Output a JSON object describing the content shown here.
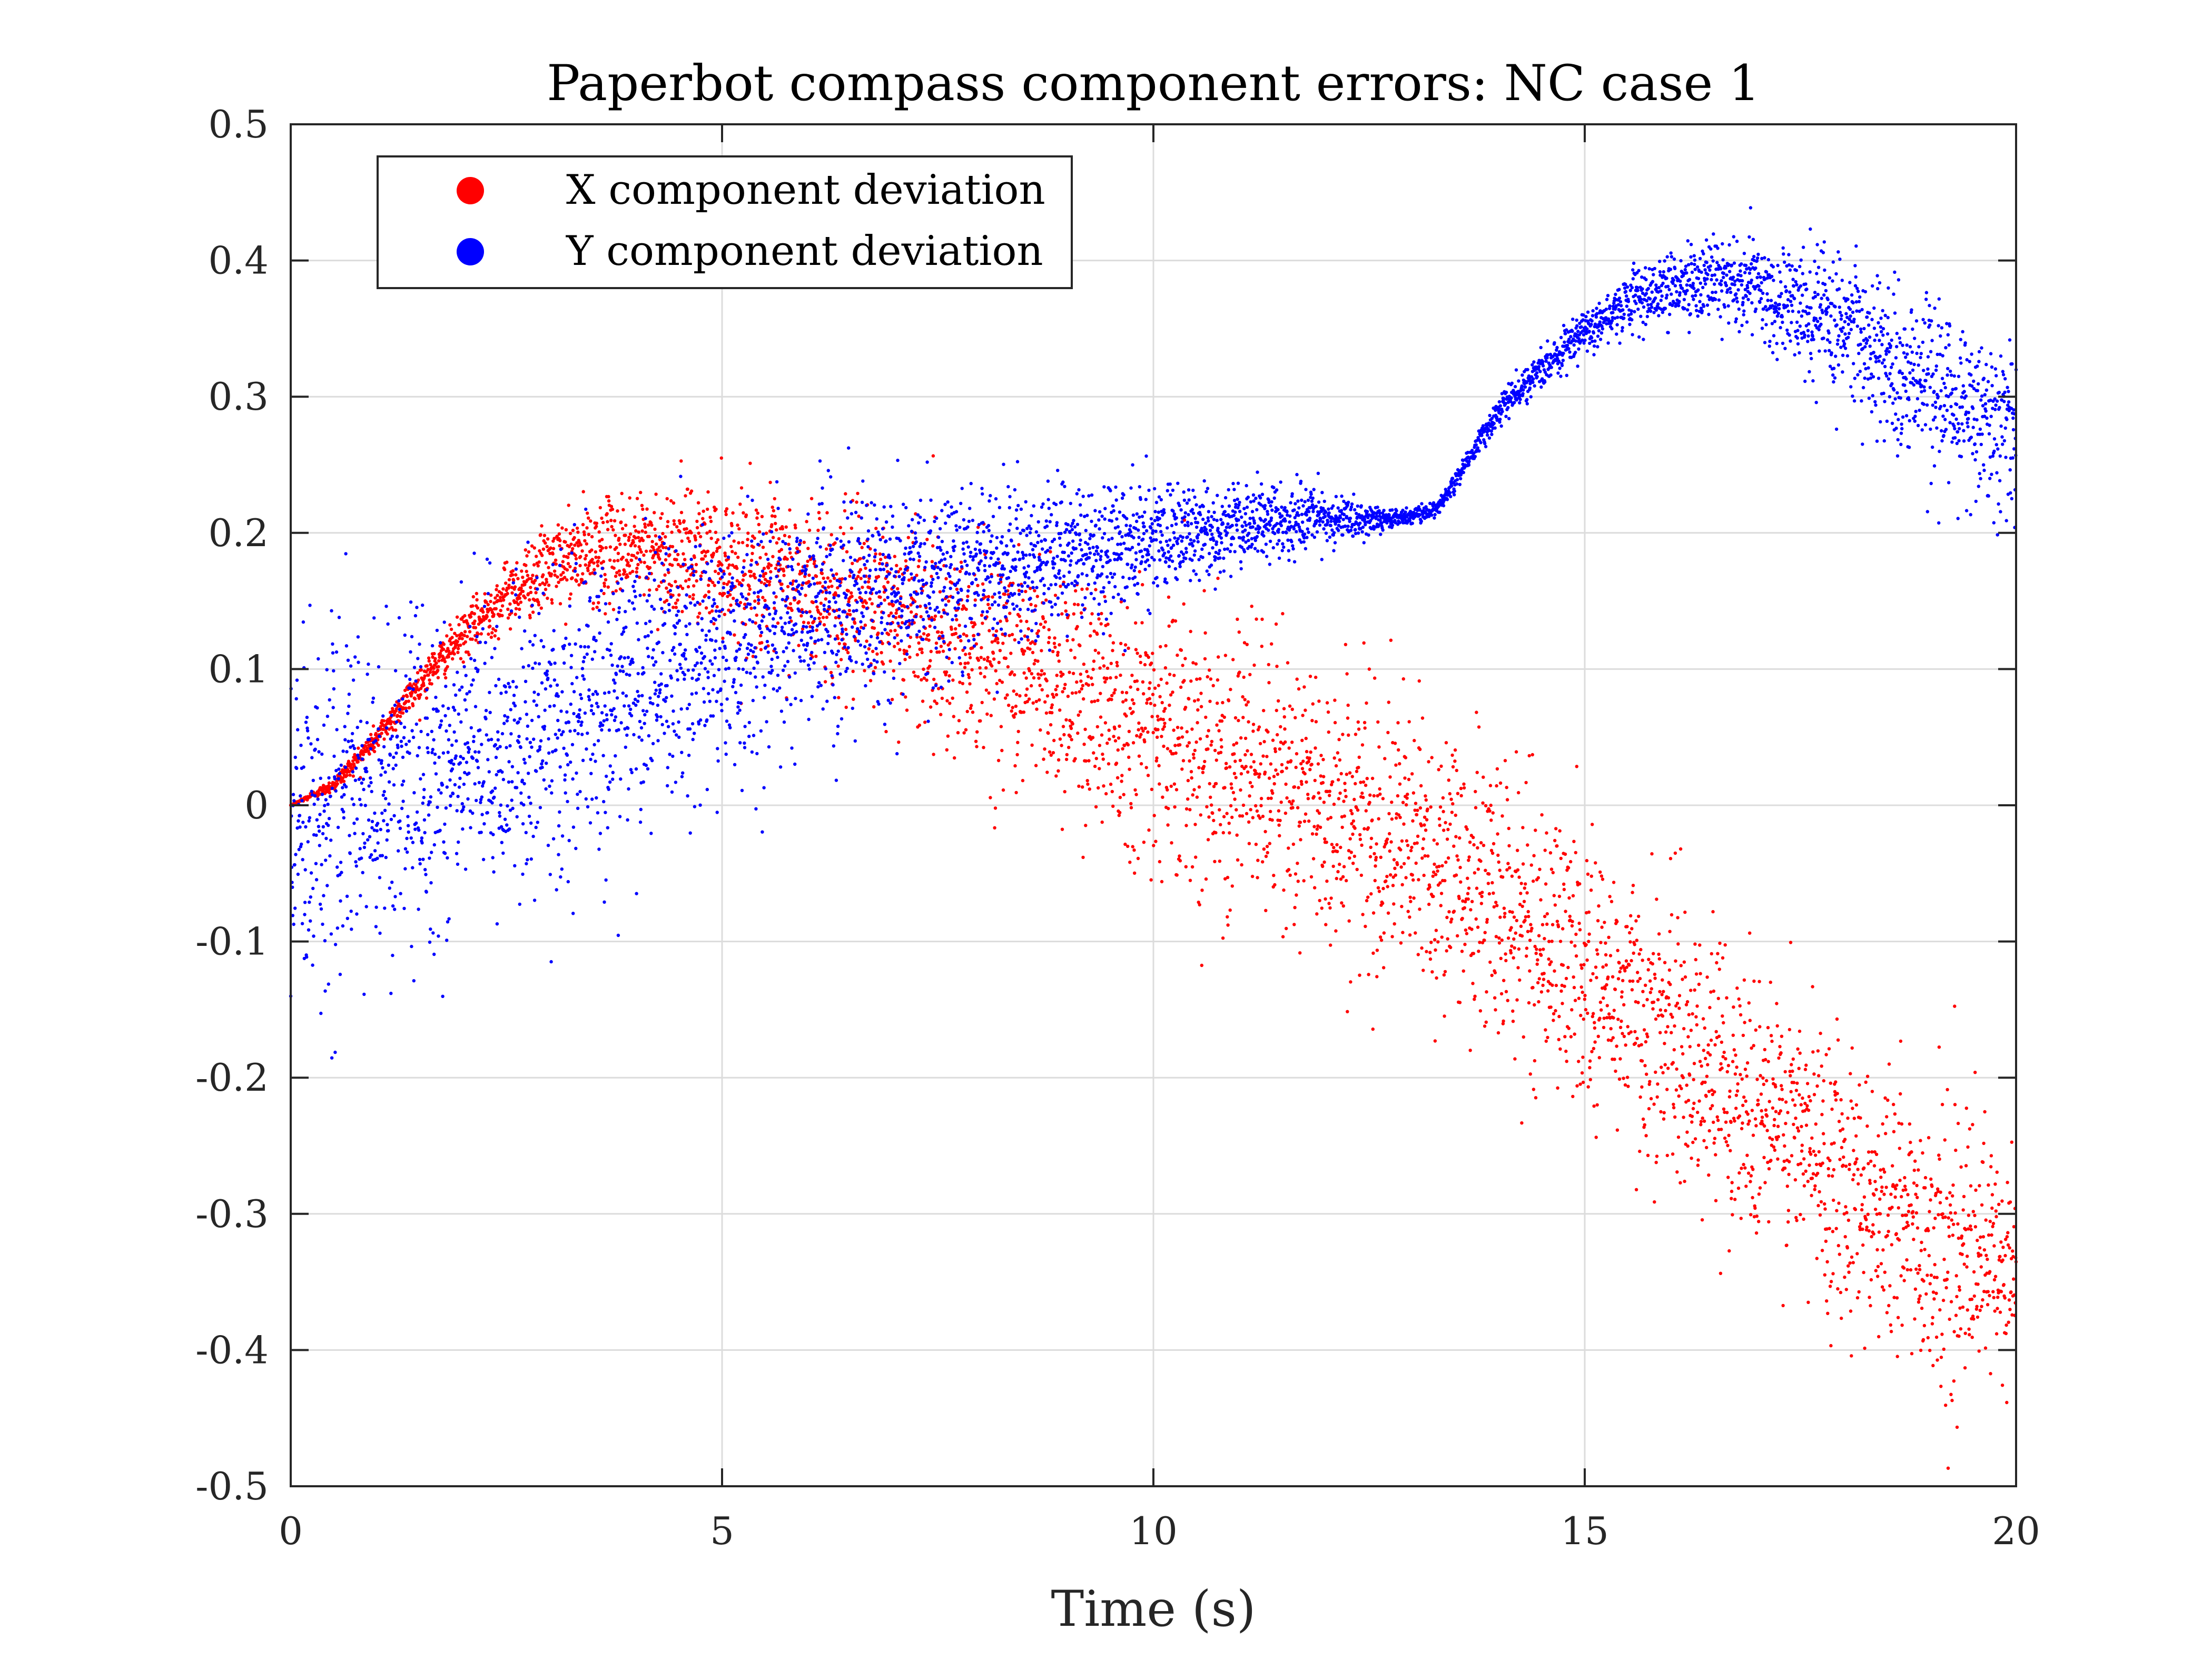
{
  "chart_data": {
    "type": "scatter",
    "title": "Paperbot compass component errors: NC case 1",
    "xlabel": "Time (s)",
    "ylabel": "",
    "xlim": [
      0,
      20
    ],
    "ylim": [
      -0.5,
      0.5
    ],
    "xticks": [
      0,
      5,
      10,
      15,
      20
    ],
    "xtick_labels": [
      "0",
      "5",
      "10",
      "15",
      "20"
    ],
    "yticks": [
      -0.5,
      -0.4,
      -0.3,
      -0.2,
      -0.1,
      0,
      0.1,
      0.2,
      0.3,
      0.4,
      0.5
    ],
    "ytick_labels": [
      "-0.5",
      "-0.4",
      "-0.3",
      "-0.2",
      "-0.1",
      "0",
      "0.1",
      "0.2",
      "0.3",
      "0.4",
      "0.5"
    ],
    "grid": true,
    "legend_position": "top-left",
    "series": [
      {
        "name": "X component deviation",
        "color": "#ff0000",
        "trend": {
          "x": [
            0,
            0.5,
            1,
            1.5,
            2,
            2.5,
            3,
            3.5,
            4,
            5,
            6,
            7,
            8,
            9,
            10,
            11,
            12,
            13,
            14,
            15,
            16,
            17,
            18,
            19,
            20
          ],
          "y": [
            0,
            0.015,
            0.05,
            0.09,
            0.125,
            0.155,
            0.175,
            0.185,
            0.19,
            0.18,
            0.16,
            0.14,
            0.115,
            0.09,
            0.06,
            0.03,
            0.0,
            -0.03,
            -0.07,
            -0.12,
            -0.17,
            -0.22,
            -0.27,
            -0.32,
            -0.35
          ]
        },
        "spread": {
          "x": [
            0,
            1,
            2,
            3,
            4,
            5,
            6,
            7,
            8,
            9,
            10,
            11,
            12,
            13,
            14,
            15,
            16,
            17,
            18,
            19,
            20
          ],
          "y": [
            0.0,
            0.005,
            0.008,
            0.015,
            0.02,
            0.025,
            0.03,
            0.035,
            0.04,
            0.045,
            0.05,
            0.05,
            0.05,
            0.05,
            0.05,
            0.05,
            0.05,
            0.05,
            0.05,
            0.05,
            0.05
          ]
        },
        "n_points": 4800
      },
      {
        "name": "Y component deviation",
        "color": "#0000ff",
        "trend": {
          "x": [
            0,
            1,
            2,
            3,
            4,
            5,
            6,
            7,
            8,
            9,
            10,
            11,
            12,
            12.5,
            13,
            13.3,
            14,
            15,
            15.5,
            16,
            16.5,
            17,
            18,
            19,
            20
          ],
          "y": [
            -0.01,
            0.01,
            0.03,
            0.055,
            0.085,
            0.115,
            0.14,
            0.16,
            0.175,
            0.185,
            0.195,
            0.205,
            0.21,
            0.21,
            0.212,
            0.218,
            0.29,
            0.35,
            0.37,
            0.38,
            0.385,
            0.38,
            0.35,
            0.31,
            0.27
          ]
        },
        "spread": {
          "x": [
            0,
            1,
            2,
            3,
            4,
            5,
            6,
            7,
            8,
            9,
            10,
            11,
            12,
            12.5,
            13,
            13.3,
            14,
            15,
            16,
            17,
            18,
            19,
            20
          ],
          "y": [
            0.06,
            0.06,
            0.06,
            0.055,
            0.05,
            0.045,
            0.04,
            0.035,
            0.03,
            0.025,
            0.02,
            0.015,
            0.01,
            0.005,
            0.003,
            0.003,
            0.005,
            0.008,
            0.012,
            0.018,
            0.025,
            0.03,
            0.035
          ]
        },
        "n_points": 5200
      }
    ]
  }
}
